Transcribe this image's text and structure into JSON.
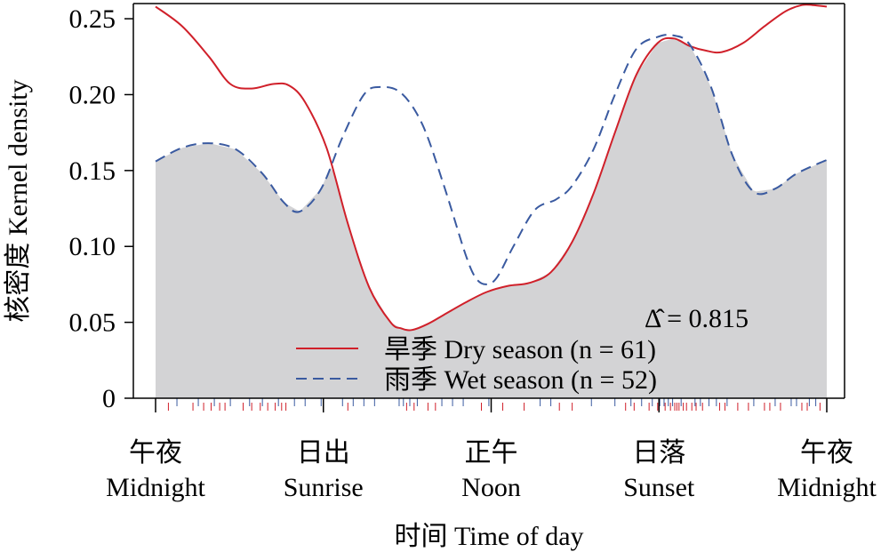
{
  "chart_data": {
    "type": "area",
    "xlabel": "时间 Time of day",
    "ylabel": "核密度 Kernel density",
    "ylim": [
      0,
      0.26
    ],
    "xlim": [
      0,
      6.2832
    ],
    "y_ticks": [
      0,
      0.05,
      0.1,
      0.15,
      0.2,
      0.25
    ],
    "y_tick_labels": [
      "0",
      "0.05",
      "0.10",
      "0.15",
      "0.20",
      "0.25"
    ],
    "x_ticks": [
      {
        "x": 0,
        "line1": "午夜",
        "line2": "Midnight"
      },
      {
        "x": 1.5708,
        "line1": "日出",
        "line2": "Sunrise"
      },
      {
        "x": 3.1416,
        "line1": "正午",
        "line2": "Noon"
      },
      {
        "x": 4.7124,
        "line1": "日落",
        "line2": "Sunset"
      },
      {
        "x": 6.2832,
        "line1": "午夜",
        "line2": "Midnight"
      }
    ],
    "overlap_estimate": "Δ̂ = 0.815",
    "series": [
      {
        "name": "旱季 Dry season (n = 61)",
        "color": "#d0202a",
        "dash": "solid",
        "x": [
          0.0,
          0.25,
          0.5,
          0.7,
          0.9,
          1.1,
          1.25,
          1.4,
          1.6,
          1.8,
          2.0,
          2.2,
          2.3,
          2.4,
          2.55,
          2.7,
          2.9,
          3.1,
          3.3,
          3.5,
          3.7,
          3.9,
          4.1,
          4.3,
          4.5,
          4.7,
          4.85,
          5.0,
          5.15,
          5.3,
          5.5,
          5.7,
          5.9,
          6.05,
          6.15,
          6.2832
        ],
        "y": [
          0.258,
          0.245,
          0.225,
          0.207,
          0.204,
          0.207,
          0.206,
          0.195,
          0.165,
          0.115,
          0.073,
          0.05,
          0.046,
          0.045,
          0.049,
          0.055,
          0.063,
          0.07,
          0.074,
          0.076,
          0.083,
          0.103,
          0.135,
          0.175,
          0.213,
          0.234,
          0.237,
          0.232,
          0.229,
          0.228,
          0.234,
          0.245,
          0.255,
          0.259,
          0.259,
          0.258
        ]
      },
      {
        "name": "雨季 Wet season (n = 52)",
        "color": "#3a5aa0",
        "dash": "dashed",
        "x": [
          0.0,
          0.25,
          0.5,
          0.75,
          1.0,
          1.2,
          1.35,
          1.55,
          1.75,
          1.95,
          2.1,
          2.3,
          2.5,
          2.7,
          2.9,
          3.0,
          3.1,
          3.2,
          3.35,
          3.55,
          3.75,
          3.9,
          4.1,
          4.3,
          4.5,
          4.7,
          4.85,
          5.0,
          5.2,
          5.4,
          5.6,
          5.8,
          6.0,
          6.2832
        ],
        "y": [
          0.156,
          0.165,
          0.168,
          0.164,
          0.148,
          0.129,
          0.123,
          0.138,
          0.172,
          0.2,
          0.205,
          0.201,
          0.18,
          0.14,
          0.095,
          0.079,
          0.075,
          0.08,
          0.1,
          0.124,
          0.131,
          0.14,
          0.164,
          0.2,
          0.23,
          0.238,
          0.239,
          0.233,
          0.205,
          0.16,
          0.136,
          0.138,
          0.148,
          0.157
        ]
      }
    ],
    "rug": {
      "dry": [
        0.12,
        0.35,
        0.45,
        0.52,
        0.6,
        0.65,
        0.82,
        0.9,
        0.98,
        1.05,
        1.12,
        1.18,
        1.22,
        1.8,
        2.35,
        2.42,
        2.55,
        2.62,
        3.05,
        3.25,
        3.45,
        3.78,
        3.9,
        4.4,
        4.48,
        4.62,
        4.7,
        4.77,
        4.82,
        4.86,
        4.88,
        4.9,
        4.94,
        4.97,
        5.02,
        5.06,
        5.12,
        5.28,
        5.33,
        5.45,
        5.55,
        5.7,
        5.75,
        5.85,
        6.05,
        6.1,
        6.22
      ],
      "wet": [
        0.2,
        0.4,
        0.55,
        0.7,
        0.88,
        1.0,
        1.15,
        1.3,
        1.4,
        1.55,
        1.75,
        1.85,
        1.95,
        2.05,
        2.28,
        2.32,
        2.38,
        2.45,
        2.68,
        2.78,
        2.88,
        3.12,
        3.6,
        3.7,
        4.08,
        4.3,
        4.45,
        4.55,
        4.65,
        4.72,
        4.76,
        4.8,
        4.84,
        4.92,
        5.05,
        5.1,
        5.18,
        5.25,
        5.35,
        5.6,
        5.8,
        5.95,
        6.0,
        6.12,
        6.18
      ]
    }
  },
  "legend_position": "bottom-center"
}
